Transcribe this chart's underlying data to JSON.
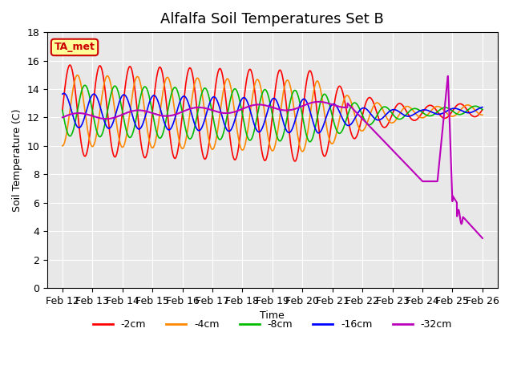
{
  "title": "Alfalfa Soil Temperatures Set B",
  "xlabel": "Time",
  "ylabel": "Soil Temperature (C)",
  "ylim": [
    0,
    18
  ],
  "xtick_labels": [
    "Feb 12",
    "Feb 13",
    "Feb 14",
    "Feb 15",
    "Feb 16",
    "Feb 17",
    "Feb 18",
    "Feb 19",
    "Feb 20",
    "Feb 21",
    "Feb 22",
    "Feb 23",
    "Feb 24",
    "Feb 25",
    "Feb 26"
  ],
  "ytick_values": [
    0,
    2,
    4,
    6,
    8,
    10,
    12,
    14,
    16,
    18
  ],
  "series": {
    "-2cm": {
      "color": "#ff0000"
    },
    "-4cm": {
      "color": "#ff8800"
    },
    "-8cm": {
      "color": "#00bb00"
    },
    "-16cm": {
      "color": "#0000ff"
    },
    "-32cm": {
      "color": "#bb00bb"
    }
  },
  "annotation": {
    "text": "TA_met",
    "bg": "#ffff99",
    "border": "#cc0000",
    "fontsize": 9
  },
  "plot_bg": "#e8e8e8",
  "title_fontsize": 13,
  "axis_fontsize": 9,
  "legend_fontsize": 9,
  "n_days": 14,
  "amp_2cm": 3.2,
  "amp_4cm": 2.5,
  "amp_8cm": 1.8,
  "amp_16cm": 1.2,
  "base_temp": 12.5,
  "phase_2cm": 0.0,
  "phase_4cm": 0.25,
  "phase_8cm": 0.5,
  "phase_16cm": 0.8
}
